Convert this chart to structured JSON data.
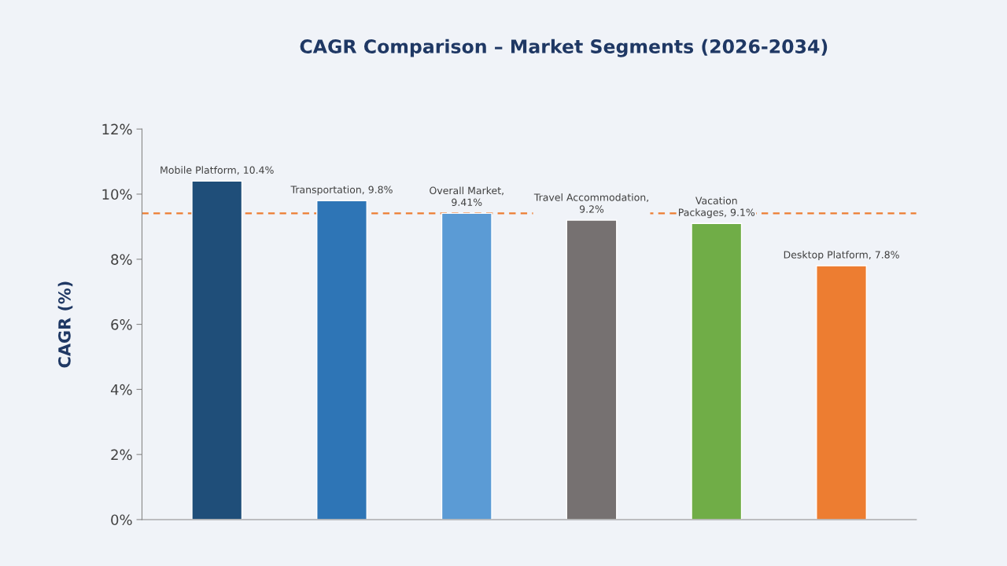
{
  "chart_data": {
    "type": "bar",
    "title": "CAGR Comparison – Market Segments (2026-2034)",
    "ylabel": "CAGR (%)",
    "categories": [
      null,
      null,
      null,
      null,
      null,
      null
    ],
    "values": [
      10.4,
      9.8,
      9.41,
      9.2,
      9.1,
      7.8
    ],
    "colors": [
      "#1f4e79",
      "#2e75b6",
      "#5b9bd5",
      "#767171",
      "#70ad47",
      "#ed7d31"
    ],
    "value_labels": [
      "Mobile Platform, 10.4%",
      "Transportation, 9.8%",
      "Overall Market,\n9.41%",
      "Travel Accommodation,\n9.2%",
      "Vacation\nPackages, 9.1%",
      "Desktop Platform, 7.8%"
    ],
    "ylim": [
      0,
      12
    ],
    "yticks": [
      {
        "value": 0,
        "label": "0%"
      },
      {
        "value": 2,
        "label": "2%"
      },
      {
        "value": 4,
        "label": "4%"
      },
      {
        "value": 6,
        "label": "6%"
      },
      {
        "value": 8,
        "label": "8%"
      },
      {
        "value": 10,
        "label": "10%"
      },
      {
        "value": 12,
        "label": "12%"
      }
    ],
    "ref_lines": [
      {
        "axis": "y",
        "value": 9.41,
        "color": "#ed7d31",
        "line_style": "dashed"
      }
    ],
    "tick_labels": "y",
    "grid": false,
    "legend": false
  }
}
